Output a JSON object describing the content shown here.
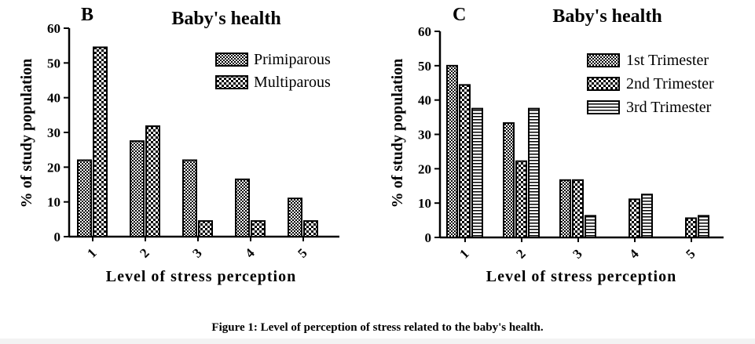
{
  "caption": "Figure 1: Level of perception of stress related to the baby's health.",
  "chart_data": [
    {
      "type": "bar",
      "panel_label": "B",
      "title": "Baby's health",
      "xlabel": "Level of stress perception",
      "ylabel": "% of study population",
      "categories": [
        "1",
        "2",
        "3",
        "4",
        "5"
      ],
      "ylim": [
        0,
        60
      ],
      "yticks": [
        0,
        10,
        20,
        30,
        40,
        50,
        60
      ],
      "legend_position": "top-right",
      "grid": false,
      "series": [
        {
          "name": "Primiparous",
          "values": [
            22,
            27.5,
            22,
            16.5,
            11
          ],
          "pattern": "fine-check"
        },
        {
          "name": "Multiparous",
          "values": [
            54.5,
            31.8,
            4.5,
            4.5,
            4.5
          ],
          "pattern": "coarse-check"
        }
      ]
    },
    {
      "type": "bar",
      "panel_label": "C",
      "title": "Baby's health",
      "xlabel": "Level of stress perception",
      "ylabel": "% of study population",
      "categories": [
        "1",
        "2",
        "3",
        "4",
        "5"
      ],
      "ylim": [
        0,
        60
      ],
      "yticks": [
        0,
        10,
        20,
        30,
        40,
        50,
        60
      ],
      "legend_position": "top-right",
      "grid": false,
      "series": [
        {
          "name": "1st Trimester",
          "values": [
            50,
            33.3,
            16.7,
            0,
            0
          ],
          "pattern": "fine-check"
        },
        {
          "name": "2nd Trimester",
          "values": [
            44.4,
            22.2,
            16.7,
            11.1,
            5.6
          ],
          "pattern": "coarse-check"
        },
        {
          "name": "3rd Trimester",
          "values": [
            37.5,
            37.5,
            6.3,
            12.5,
            6.3
          ],
          "pattern": "horizontal-lines"
        }
      ]
    }
  ]
}
